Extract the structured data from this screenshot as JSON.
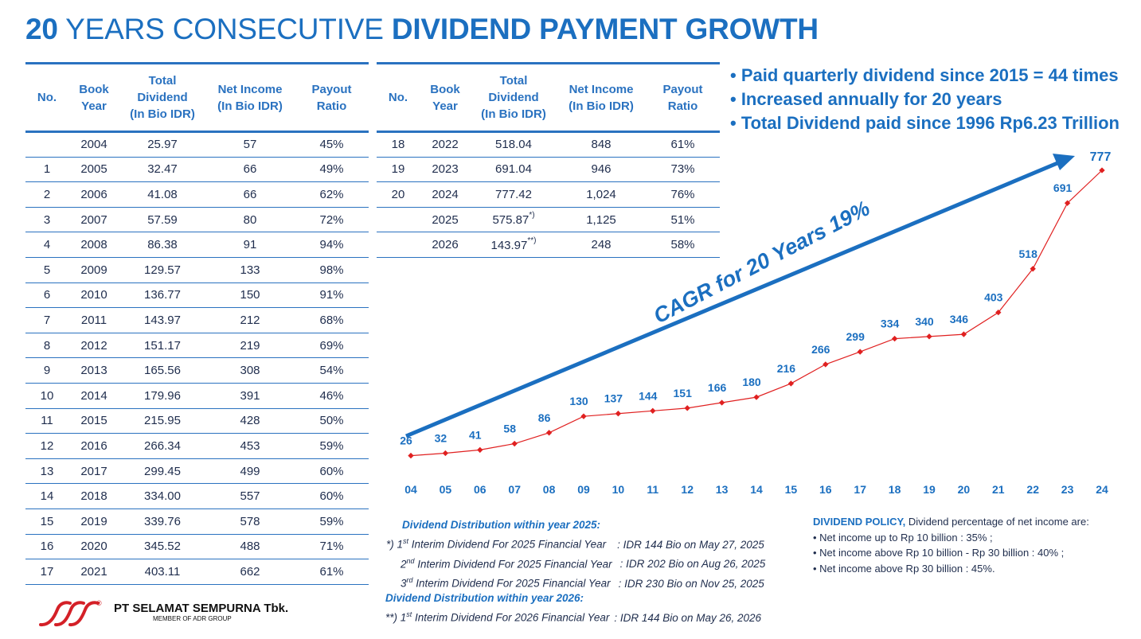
{
  "title": {
    "num": "20",
    "mid": " YEARS CONSECUTIVE ",
    "bold": "DIVIDEND PAYMENT GROWTH"
  },
  "table": {
    "headers": {
      "no": "No.",
      "book1": "Book",
      "book2": "Year",
      "tot1": "Total",
      "tot2": "Dividend",
      "tot3": "(In Bio IDR)",
      "ni1": "Net Income",
      "ni2": "(In Bio IDR)",
      "pr1": "Payout",
      "pr2": "Ratio"
    },
    "left_rows": [
      [
        "",
        "2004",
        "25.97",
        "57",
        "45%"
      ],
      [
        "1",
        "2005",
        "32.47",
        "66",
        "49%"
      ],
      [
        "2",
        "2006",
        "41.08",
        "66",
        "62%"
      ],
      [
        "3",
        "2007",
        "57.59",
        "80",
        "72%"
      ],
      [
        "4",
        "2008",
        "86.38",
        "91",
        "94%"
      ],
      [
        "5",
        "2009",
        "129.57",
        "133",
        "98%"
      ],
      [
        "6",
        "2010",
        "136.77",
        "150",
        "91%"
      ],
      [
        "7",
        "2011",
        "143.97",
        "212",
        "68%"
      ],
      [
        "8",
        "2012",
        "151.17",
        "219",
        "69%"
      ],
      [
        "9",
        "2013",
        "165.56",
        "308",
        "54%"
      ],
      [
        "10",
        "2014",
        "179.96",
        "391",
        "46%"
      ],
      [
        "11",
        "2015",
        "215.95",
        "428",
        "50%"
      ],
      [
        "12",
        "2016",
        "266.34",
        "453",
        "59%"
      ],
      [
        "13",
        "2017",
        "299.45",
        "499",
        "60%"
      ],
      [
        "14",
        "2018",
        "334.00",
        "557",
        "60%"
      ],
      [
        "15",
        "2019",
        "339.76",
        "578",
        "59%"
      ],
      [
        "16",
        "2020",
        "345.52",
        "488",
        "71%"
      ],
      [
        "17",
        "2021",
        "403.11",
        "662",
        "61%"
      ]
    ],
    "right_rows": [
      [
        "18",
        "2022",
        "518.04",
        "848",
        "61%"
      ],
      [
        "19",
        "2023",
        "691.04",
        "946",
        "73%"
      ],
      [
        "20",
        "2024",
        "777.42",
        "1,024",
        "76%"
      ],
      [
        "",
        "2025",
        "575.87",
        "1,125",
        "51%"
      ],
      [
        "",
        "2026",
        "143.97",
        "248",
        "58%"
      ]
    ],
    "right_sups": [
      "",
      "",
      "",
      "*)",
      "**)"
    ]
  },
  "bullets": [
    "• Paid quarterly dividend since 2015 = 44 times",
    "• Increased annually for 20 years",
    "• Total Dividend paid since 1996 Rp6.23 Trillion"
  ],
  "chart_data": {
    "type": "line",
    "title": "",
    "categories": [
      "04",
      "05",
      "06",
      "07",
      "08",
      "09",
      "10",
      "11",
      "12",
      "13",
      "14",
      "15",
      "16",
      "17",
      "18",
      "19",
      "20",
      "21",
      "22",
      "23",
      "24"
    ],
    "values": [
      25.97,
      32.47,
      41.08,
      57.59,
      86.38,
      129.57,
      136.77,
      143.97,
      151.17,
      165.56,
      179.96,
      215.95,
      266.34,
      299.45,
      334.0,
      339.76,
      345.52,
      403.11,
      518.04,
      691.04,
      777.42
    ],
    "labels": [
      "26",
      "32",
      "41",
      "58",
      "86",
      "130",
      "137",
      "144",
      "151",
      "166",
      "180",
      "216",
      "266",
      "299",
      "334",
      "340",
      "346",
      "403",
      "518",
      "691",
      "777"
    ],
    "xlabel": "",
    "ylabel": "",
    "ylim": [
      0,
      800
    ],
    "annotation": "CAGR for 20 Years 19%",
    "line_color": "#e02020",
    "label_color": "#1b6fc0",
    "arrow_color": "#1b6fc0"
  },
  "notes2025": {
    "head": "Dividend Distribution within year 2025:",
    "l1_pre": "*) 1",
    "l1_sup": "st",
    "l1_text": " Interim Dividend For 2025 Financial Year",
    "l1_val": ": IDR 144 Bio on May 27, 2025",
    "l2_pre": "2",
    "l2_sup": "nd",
    "l2_text": " Interim Dividend For 2025 Financial Year",
    "l2_val": ": IDR 202 Bio on Aug 26, 2025",
    "l3_pre": "3",
    "l3_sup": "rd",
    "l3_text": " Interim Dividend For 2025 Financial Year",
    "l3_val": ": IDR 230 Bio on Nov 25, 2025"
  },
  "notes2026": {
    "head": "Dividend Distribution within year 2026:",
    "l1_pre": "**) 1",
    "l1_sup": "st",
    "l1_text": " Interim Dividend For 2026 Financial Year",
    "l1_val": ": IDR 144 Bio on May 26, 2026"
  },
  "policy": {
    "head": "DIVIDEND POLICY,",
    "head_rest": " Dividend percentage of net income are:",
    "items": [
      "•  Net income up to Rp 10 billion : 35% ;",
      "•  Net income above Rp 10 billion - Rp 30 billion : 40% ;",
      "•  Net income above Rp 30 billion : 45%."
    ]
  },
  "company": {
    "name": "PT SELAMAT SEMPURNA Tbk.",
    "sub": "MEMBER OF ADR GROUP",
    "registered": "®"
  },
  "colors": {
    "brand": "#1b6fc0",
    "line": "#e02020",
    "logo": "#d42027"
  }
}
